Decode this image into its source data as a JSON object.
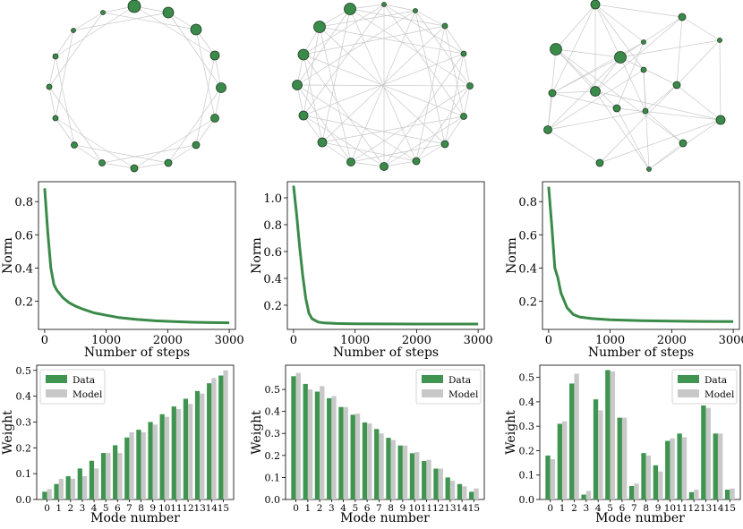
{
  "chart_data": [
    {
      "type": "network",
      "name": "ring-graph",
      "nodes": 16,
      "node_color": "#3a8a4a",
      "edge_color": "#c8c8c8"
    },
    {
      "type": "network",
      "name": "circulant-graph",
      "nodes": 16,
      "node_color": "#3a8a4a",
      "edge_color": "#c8c8c8"
    },
    {
      "type": "network",
      "name": "random-graph",
      "nodes": 16,
      "node_color": "#3a8a4a",
      "edge_color": "#c8c8c8"
    },
    {
      "type": "line",
      "xlabel": "Number of steps",
      "ylabel": "Norm",
      "xlim": [
        -100,
        3100
      ],
      "ylim": [
        0.03,
        0.92
      ],
      "xticks": [
        0,
        1000,
        2000,
        3000
      ],
      "yticks": [
        0.2,
        0.4,
        0.6,
        0.8
      ],
      "xtick_labels": [
        "0",
        "1000",
        "2000",
        "3000"
      ],
      "ytick_labels": [
        "0.2",
        "0.4",
        "0.6",
        "0.8"
      ],
      "color": "#3a8a4a",
      "x": [
        0,
        50,
        100,
        150,
        200,
        300,
        400,
        500,
        600,
        800,
        1000,
        1200,
        1500,
        1800,
        2100,
        2400,
        2700,
        3000
      ],
      "y": [
        0.88,
        0.62,
        0.4,
        0.3,
        0.265,
        0.22,
        0.19,
        0.17,
        0.155,
        0.13,
        0.115,
        0.102,
        0.09,
        0.082,
        0.077,
        0.073,
        0.071,
        0.07
      ]
    },
    {
      "type": "line",
      "xlabel": "Number of steps",
      "ylabel": "Norm",
      "xlim": [
        -100,
        3100
      ],
      "ylim": [
        0.02,
        1.12
      ],
      "xticks": [
        0,
        1000,
        2000,
        3000
      ],
      "yticks": [
        0.2,
        0.4,
        0.6,
        0.8,
        1.0
      ],
      "xtick_labels": [
        "0",
        "1000",
        "2000",
        "3000"
      ],
      "ytick_labels": [
        "0.2",
        "0.4",
        "0.6",
        "0.8",
        "1.0"
      ],
      "color": "#3a8a4a",
      "x": [
        0,
        50,
        100,
        150,
        200,
        250,
        300,
        400,
        500,
        700,
        1000,
        1500,
        2000,
        2500,
        3000
      ],
      "y": [
        1.09,
        0.88,
        0.63,
        0.42,
        0.25,
        0.14,
        0.1,
        0.075,
        0.068,
        0.064,
        0.062,
        0.061,
        0.06,
        0.06,
        0.06
      ]
    },
    {
      "type": "line",
      "xlabel": "Number of steps",
      "ylabel": "Norm",
      "xlim": [
        -100,
        3100
      ],
      "ylim": [
        0.03,
        0.92
      ],
      "xticks": [
        0,
        1000,
        2000,
        3000
      ],
      "yticks": [
        0.2,
        0.4,
        0.6,
        0.8
      ],
      "xtick_labels": [
        "0",
        "1000",
        "2000",
        "3000"
      ],
      "ytick_labels": [
        "0.2",
        "0.4",
        "0.6",
        "0.8"
      ],
      "color": "#3a8a4a",
      "x": [
        0,
        50,
        100,
        150,
        200,
        300,
        400,
        500,
        700,
        1000,
        1500,
        2000,
        2500,
        3000
      ],
      "y": [
        0.89,
        0.66,
        0.4,
        0.34,
        0.25,
        0.16,
        0.12,
        0.105,
        0.095,
        0.088,
        0.083,
        0.08,
        0.078,
        0.077
      ]
    },
    {
      "type": "bar",
      "xlabel": "Mode number",
      "ylabel": "Weight",
      "ylim": [
        0,
        0.52
      ],
      "yticks": [
        0.0,
        0.1,
        0.2,
        0.3,
        0.4,
        0.5
      ],
      "ytick_labels": [
        "0.0",
        "0.1",
        "0.2",
        "0.3",
        "0.4",
        "0.5"
      ],
      "categories": [
        "0",
        "1",
        "2",
        "3",
        "4",
        "5",
        "6",
        "7",
        "8",
        "9",
        "10",
        "11",
        "12",
        "13",
        "14",
        "15"
      ],
      "legend_position": "top-left",
      "series": [
        {
          "name": "Data",
          "color": "#3f9450",
          "values": [
            0.03,
            0.06,
            0.09,
            0.12,
            0.15,
            0.18,
            0.21,
            0.24,
            0.27,
            0.3,
            0.33,
            0.36,
            0.39,
            0.42,
            0.45,
            0.48
          ]
        },
        {
          "name": "Model",
          "color": "#c8c8c8",
          "values": [
            0.04,
            0.08,
            0.08,
            0.09,
            0.12,
            0.18,
            0.18,
            0.26,
            0.26,
            0.29,
            0.32,
            0.35,
            0.37,
            0.41,
            0.47,
            0.5
          ]
        }
      ]
    },
    {
      "type": "bar",
      "xlabel": "Mode number",
      "ylabel": "Weight",
      "ylim": [
        0,
        0.61
      ],
      "yticks": [
        0.0,
        0.1,
        0.2,
        0.3,
        0.4,
        0.5
      ],
      "ytick_labels": [
        "0.0",
        "0.1",
        "0.2",
        "0.3",
        "0.4",
        "0.5"
      ],
      "categories": [
        "0",
        "1",
        "2",
        "3",
        "4",
        "5",
        "6",
        "7",
        "8",
        "9",
        "10",
        "11",
        "12",
        "13",
        "14",
        "15"
      ],
      "legend_position": "top-right",
      "series": [
        {
          "name": "Data",
          "color": "#3f9450",
          "values": [
            0.56,
            0.525,
            0.49,
            0.46,
            0.42,
            0.385,
            0.35,
            0.32,
            0.28,
            0.245,
            0.21,
            0.175,
            0.14,
            0.1,
            0.07,
            0.035
          ]
        },
        {
          "name": "Model",
          "color": "#c8c8c8",
          "values": [
            0.575,
            0.5,
            0.515,
            0.47,
            0.42,
            0.39,
            0.345,
            0.3,
            0.27,
            0.245,
            0.215,
            0.18,
            0.14,
            0.085,
            0.06,
            0.05
          ]
        }
      ]
    },
    {
      "type": "bar",
      "xlabel": "Mode number",
      "ylabel": "Weight",
      "ylim": [
        0,
        0.55
      ],
      "yticks": [
        0.0,
        0.1,
        0.2,
        0.3,
        0.4,
        0.5
      ],
      "ytick_labels": [
        "0.0",
        "0.1",
        "0.2",
        "0.3",
        "0.4",
        "0.5"
      ],
      "categories": [
        "0",
        "1",
        "2",
        "3",
        "4",
        "5",
        "6",
        "7",
        "8",
        "9",
        "10",
        "11",
        "12",
        "13",
        "14",
        "15"
      ],
      "legend_position": "top-right",
      "series": [
        {
          "name": "Data",
          "color": "#3f9450",
          "values": [
            0.18,
            0.31,
            0.475,
            0.02,
            0.41,
            0.53,
            0.335,
            0.055,
            0.19,
            0.14,
            0.24,
            0.27,
            0.03,
            0.385,
            0.27,
            0.04
          ]
        },
        {
          "name": "Model",
          "color": "#c8c8c8",
          "values": [
            0.165,
            0.32,
            0.515,
            0.035,
            0.365,
            0.525,
            0.335,
            0.065,
            0.18,
            0.115,
            0.25,
            0.255,
            0.04,
            0.375,
            0.27,
            0.045
          ]
        }
      ]
    }
  ]
}
